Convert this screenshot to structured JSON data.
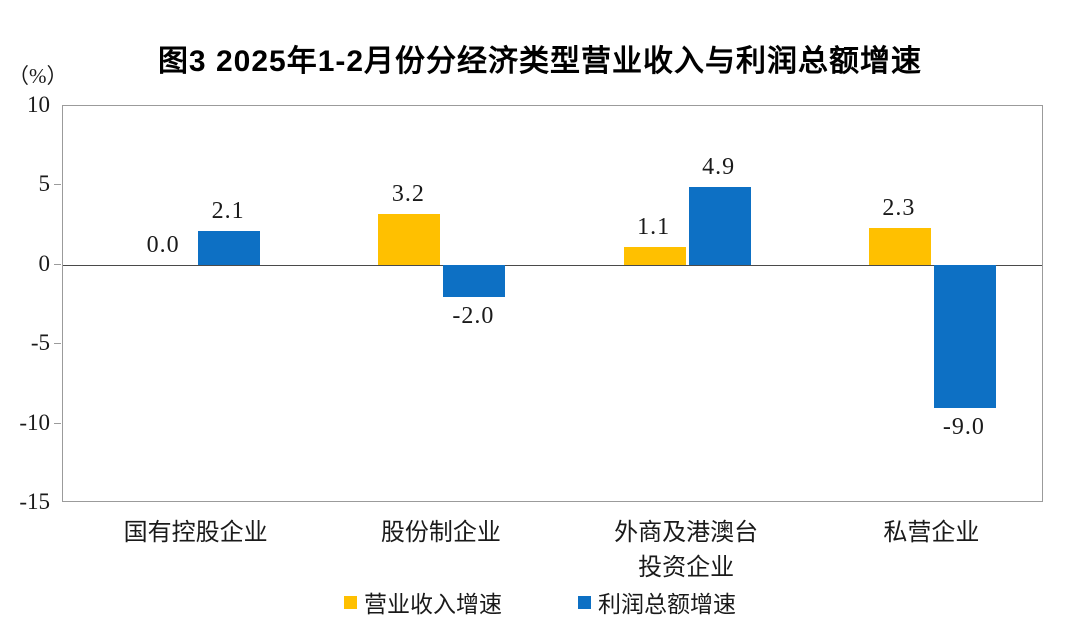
{
  "title": "图3 2025年1-2月份分经济类型营业收入与利润总额增速",
  "chart_data": {
    "type": "bar",
    "title": "图3 2025年1-2月份分经济类型营业收入与利润总额增速",
    "ylabel": "（%）",
    "ylim": [
      -15,
      10
    ],
    "yticks": [
      10,
      5,
      0,
      -5,
      -10,
      -15
    ],
    "grid": false,
    "legend_position": "bottom",
    "categories": [
      "国有控股企业",
      "股份制企业",
      "外商及港澳台\n投资企业",
      "私营企业"
    ],
    "series": [
      {
        "name": "营业收入增速",
        "key": "revenue-growth",
        "color": "#FFC000",
        "values": [
          0.0,
          3.2,
          1.1,
          2.3
        ]
      },
      {
        "name": "利润总额增速",
        "key": "profit-growth",
        "color": "#0D70C4",
        "values": [
          2.1,
          -2.0,
          4.9,
          -9.0
        ]
      }
    ],
    "value_label_format": "one-decimal"
  },
  "colors": {
    "bar_yellow": "#FFC000",
    "bar_blue": "#0D70C4",
    "axis_border": "#9B9B9B",
    "zero_line": "#4A4A4A",
    "text": "#1A1A1A",
    "background": "#FFFFFF"
  }
}
